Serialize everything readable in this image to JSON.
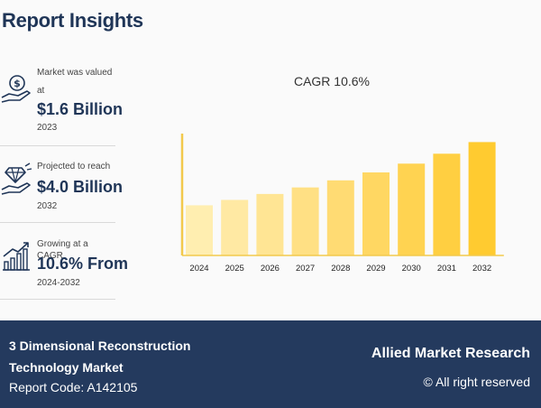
{
  "header": {
    "title": "Report Insights"
  },
  "stats": [
    {
      "label_line1": "Market was valued",
      "label_line2": "at",
      "value": "$1.6 Billion",
      "year": "2023",
      "icon": "money-hand-icon"
    },
    {
      "label_line1": "Projected to reach",
      "value": "$4.0 Billion",
      "year": "2032",
      "icon": "diamond-hand-icon"
    },
    {
      "label_line1": "Growing at a CAGR",
      "value": "10.6% From",
      "year": "2024-2032",
      "icon": "growth-chart-icon"
    }
  ],
  "chart_data": {
    "type": "bar",
    "title": "CAGR 10.6%",
    "categories": [
      "2024",
      "2025",
      "2026",
      "2027",
      "2028",
      "2029",
      "2030",
      "2031",
      "2032"
    ],
    "values": [
      1.77,
      1.96,
      2.17,
      2.4,
      2.65,
      2.93,
      3.24,
      3.59,
      4.0
    ],
    "ylim": [
      0,
      4.3
    ],
    "colors": [
      "#ffeeb0",
      "#ffe9a3",
      "#ffe594",
      "#ffe084",
      "#ffdb73",
      "#ffd762",
      "#ffd351",
      "#ffcf41",
      "#ffcb30"
    ],
    "axis_color": "#f2c94c"
  },
  "footer": {
    "market_name": "3 Dimensional Reconstruction Technology Market",
    "report_code": "Report Code: A142105",
    "brand": "Allied Market Research",
    "rights": "© All right reserved"
  }
}
